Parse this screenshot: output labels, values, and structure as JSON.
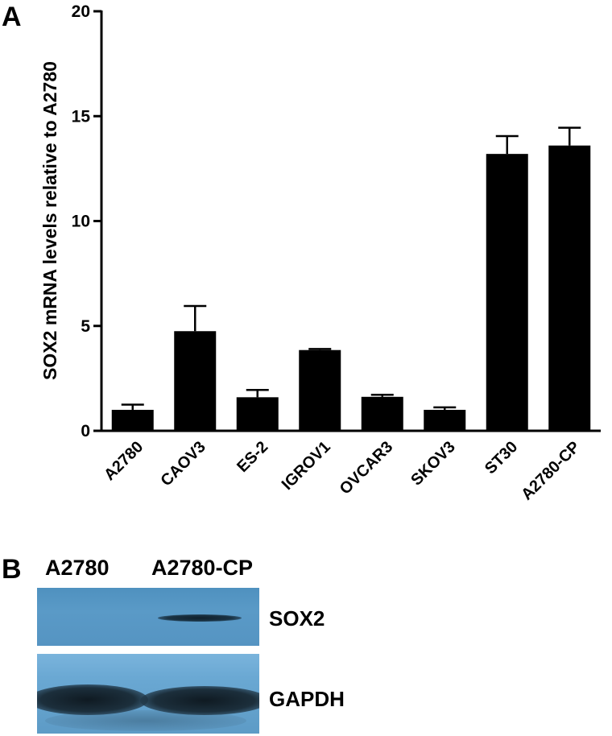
{
  "panel_a": {
    "label": "A"
  },
  "panel_b": {
    "label": "B"
  },
  "chart_data": {
    "type": "bar",
    "title": "",
    "xlabel": "",
    "ylabel": "SOX2 mRNA levels relative to A2780",
    "ylim": [
      0,
      20
    ],
    "yticks": [
      "0",
      "5",
      "10",
      "15",
      "20"
    ],
    "categories": [
      "A2780",
      "CAOV3",
      "ES-2",
      "IGROV1",
      "OVCAR3",
      "SKOV3",
      "ST30",
      "A2780-CP"
    ],
    "values": [
      1.0,
      4.75,
      1.6,
      3.85,
      1.62,
      1.0,
      13.2,
      13.6
    ],
    "error": [
      0.25,
      1.2,
      0.35,
      0.05,
      0.1,
      0.12,
      0.85,
      0.85
    ],
    "bar_color": "#000000",
    "grid": false,
    "legend": "none"
  },
  "blot": {
    "lanes": [
      "A2780",
      "A2780-CP"
    ],
    "rows": [
      {
        "label": "SOX2"
      },
      {
        "label": "GAPDH"
      }
    ]
  }
}
